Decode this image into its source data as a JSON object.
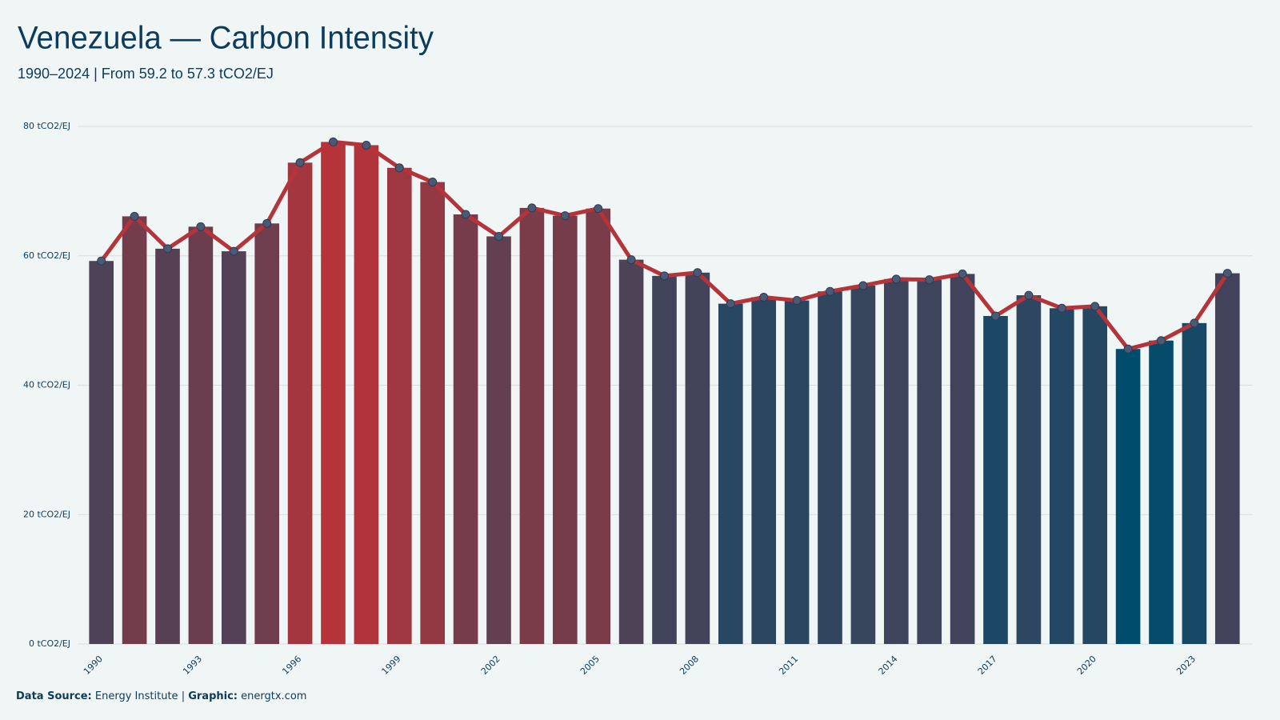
{
  "chart_data": {
    "type": "bar",
    "title": "Venezuela — Carbon Intensity",
    "subtitle": "1990–2024 | From 59.2 to 57.3 tCO2/EJ",
    "x": [
      1990,
      1991,
      1992,
      1993,
      1994,
      1995,
      1996,
      1997,
      1998,
      1999,
      2000,
      2001,
      2002,
      2003,
      2004,
      2005,
      2006,
      2007,
      2008,
      2009,
      2010,
      2011,
      2012,
      2013,
      2014,
      2015,
      2016,
      2017,
      2018,
      2019,
      2020,
      2021,
      2022,
      2023,
      2024
    ],
    "series": [
      {
        "name": "Carbon Intensity",
        "color": "#b5343a",
        "values": [
          59.2,
          66.1,
          61.1,
          64.5,
          60.7,
          65.0,
          74.4,
          77.6,
          77.1,
          73.6,
          71.4,
          66.4,
          63.0,
          67.4,
          66.2,
          67.3,
          59.4,
          56.9,
          57.4,
          52.6,
          53.6,
          53.1,
          54.5,
          55.4,
          56.4,
          56.3,
          57.2,
          50.7,
          53.9,
          51.9,
          52.2,
          45.6,
          46.9,
          49.6,
          57.3
        ]
      }
    ],
    "bar_colorscale": [
      "#004c6d",
      "#b5343a"
    ],
    "line_overlay": true,
    "marker_color": "#4a5a75",
    "xlim": [
      1989.5,
      2024.5
    ],
    "xticks": [
      1990,
      1993,
      1996,
      1999,
      2002,
      2005,
      2008,
      2011,
      2014,
      2017,
      2020,
      2023
    ],
    "ylim": [
      0,
      80
    ],
    "yticks": [
      {
        "value": 0,
        "label": "0 tCO2/EJ"
      },
      {
        "value": 20,
        "label": "20 tCO2/EJ"
      },
      {
        "value": 40,
        "label": "40 tCO2/EJ"
      },
      {
        "value": 60,
        "label": "60 tCO2/EJ"
      },
      {
        "value": 80,
        "label": "80 tCO2/EJ"
      }
    ],
    "grid": true,
    "footer": {
      "source_label": "Data Source:",
      "source": "Energy Institute",
      "separator": "|",
      "graphic_label": "Graphic:",
      "graphic": "energtx.com"
    }
  }
}
